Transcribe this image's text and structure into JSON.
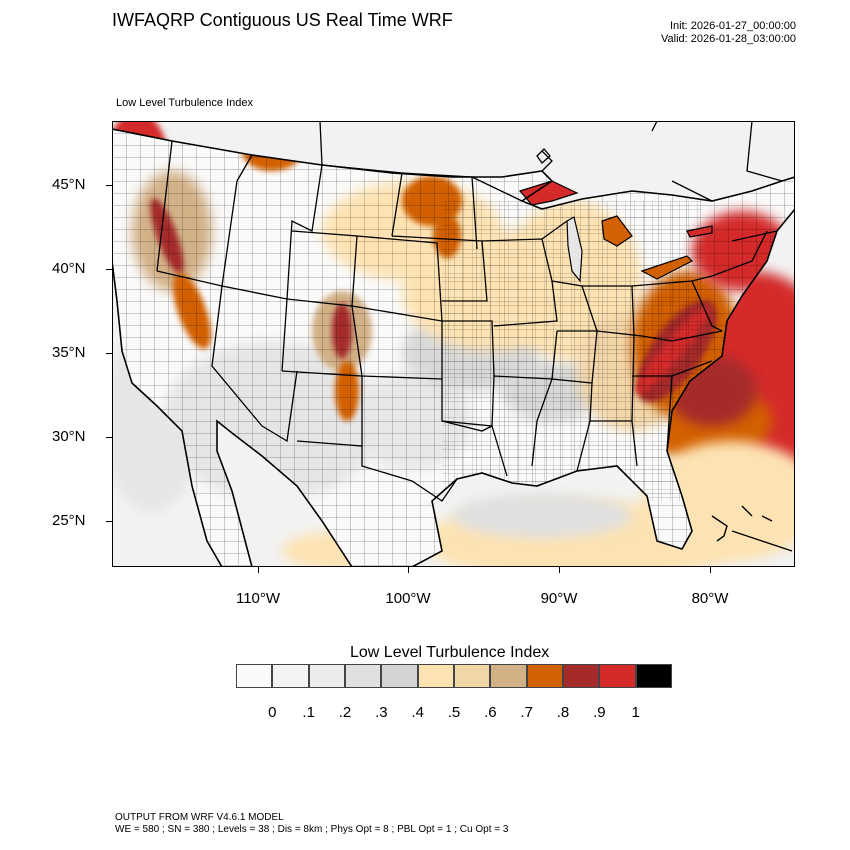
{
  "header": {
    "title": "IWFAQRP Contiguous US Real Time WRF",
    "init": "Init: 2026-01-27_00:00:00",
    "valid": "Valid: 2026-01-28_03:00:00"
  },
  "map": {
    "subtitle": "Low Level Turbulence Index",
    "lat_labels": [
      "45°N",
      "40°N",
      "35°N",
      "30°N",
      "25°N"
    ],
    "lon_labels": [
      "110°W",
      "100°W",
      "90°W",
      "80°W"
    ]
  },
  "colorbar": {
    "title": "Low Level Turbulence Index",
    "ticks": [
      "0",
      ".1",
      ".2",
      ".3",
      ".4",
      ".5",
      ".6",
      ".7",
      ".8",
      ".9",
      "1"
    ],
    "colors": [
      "#fafafa",
      "#f4f4f4",
      "#ececec",
      "#e0e0e0",
      "#d3d3d3",
      "#fde3b3",
      "#f3d6a8",
      "#d3b187",
      "#d26104",
      "#a52a2a",
      "#d42a2a",
      "#000000"
    ]
  },
  "footer": {
    "line1": "OUTPUT FROM WRF V4.6.1 MODEL",
    "line2": "WE = 580 ; SN = 380 ; Levels = 38 ; Dis = 8km ; Phys Opt = 8 ; PBL Opt = 1 ; Cu Opt = 3"
  }
}
